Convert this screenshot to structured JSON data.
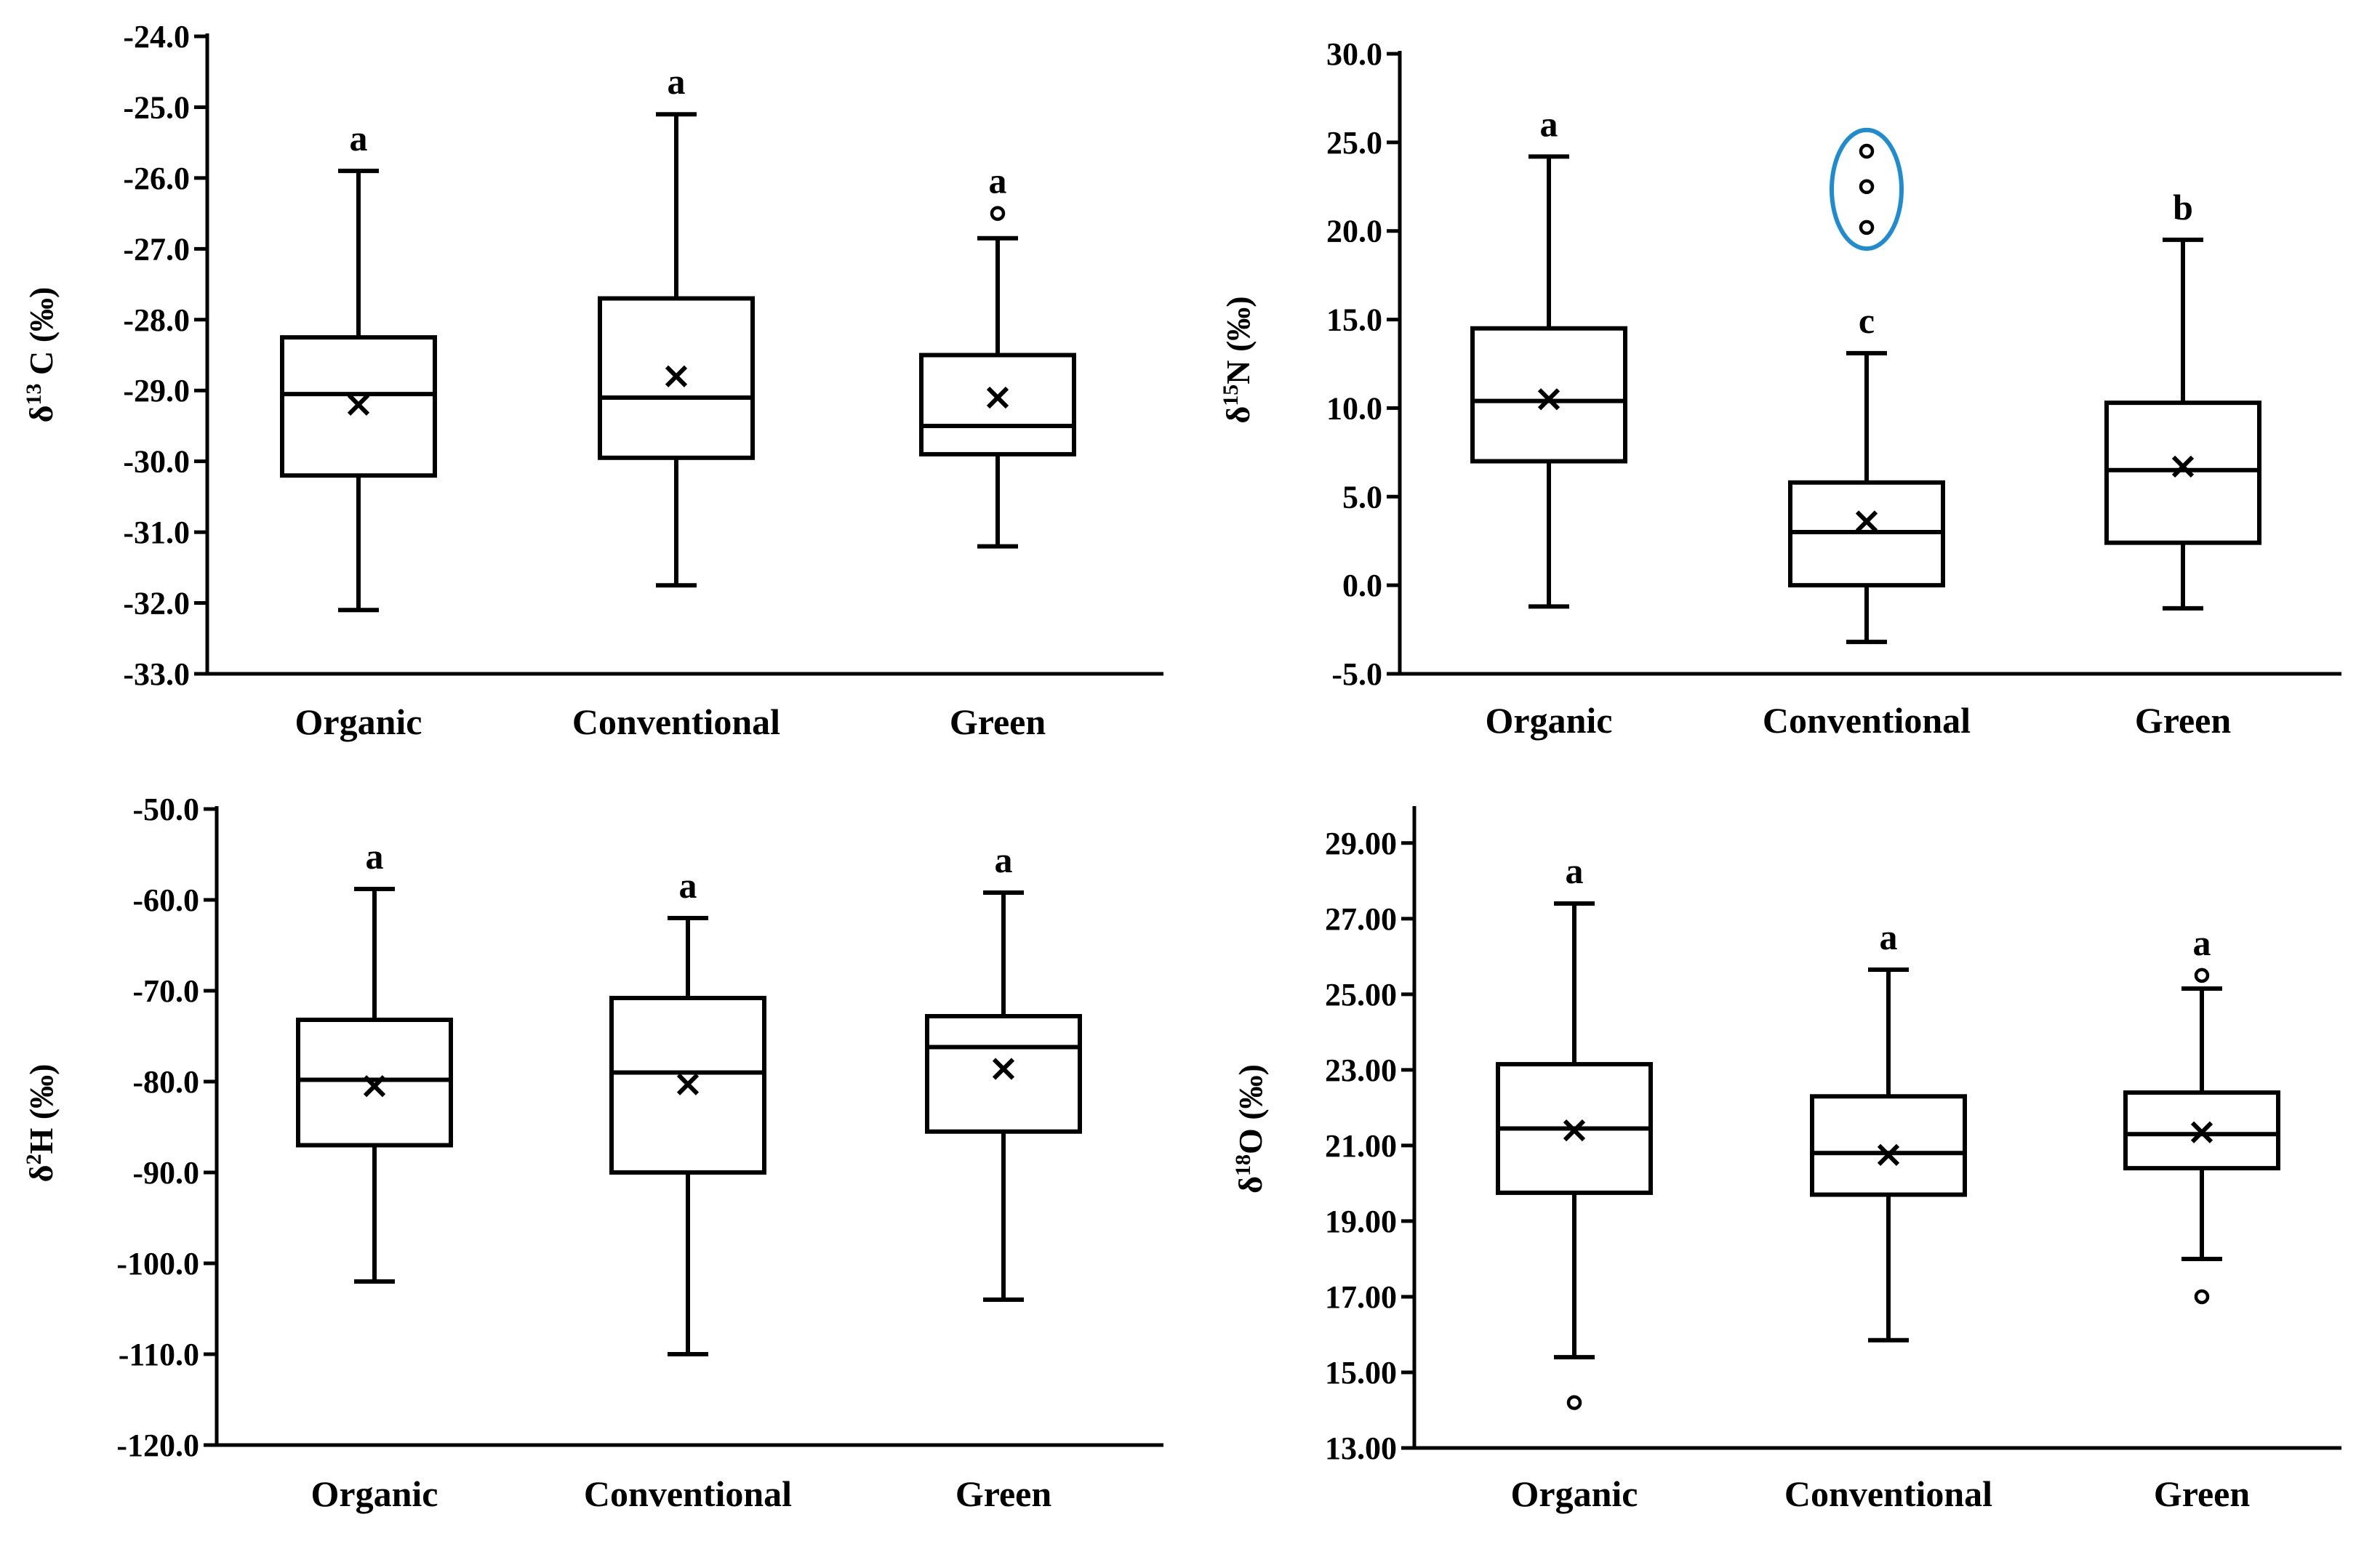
{
  "chart_data": [
    {
      "type": "box",
      "id": "d13c",
      "ylabel": {
        "prefix": "δ",
        "sup": "13",
        "suffix": " C (‰)"
      },
      "ylim": [
        -33.0,
        -24.0
      ],
      "yticks": [
        -24.0,
        -25.0,
        -26.0,
        -27.0,
        -28.0,
        -29.0,
        -30.0,
        -31.0,
        -32.0,
        -33.0
      ],
      "ytick_labels": [
        "-24.0",
        "-25.0",
        "-26.0",
        "-27.0",
        "-28.0",
        "-29.0",
        "-30.0",
        "-31.0",
        "-32.0",
        "-33.0"
      ],
      "categories": [
        "Organic",
        "Conventional",
        "Green"
      ],
      "boxes": [
        {
          "whisker_low": -32.1,
          "q1": -30.2,
          "median": -29.05,
          "q3": -28.25,
          "whisker_high": -25.9,
          "mean": -29.2,
          "outliers": [],
          "letter": "a"
        },
        {
          "whisker_low": -31.75,
          "q1": -29.95,
          "median": -29.1,
          "q3": -27.7,
          "whisker_high": -25.1,
          "mean": -28.8,
          "outliers": [],
          "letter": "a"
        },
        {
          "whisker_low": -31.2,
          "q1": -29.9,
          "median": -29.5,
          "q3": -28.5,
          "whisker_high": -26.85,
          "mean": -29.1,
          "outliers": [
            -26.5
          ],
          "letter": "a"
        }
      ],
      "highlight": null
    },
    {
      "type": "box",
      "id": "d15n",
      "ylabel": {
        "prefix": "δ",
        "sup": "15",
        "suffix": "N (‰)"
      },
      "ylim": [
        -5.0,
        30.0
      ],
      "yticks": [
        30.0,
        25.0,
        20.0,
        15.0,
        10.0,
        5.0,
        0.0,
        -5.0
      ],
      "ytick_labels": [
        "30.0",
        "25.0",
        "20.0",
        "15.0",
        "10.0",
        "5.0",
        "0.0",
        "-5.0"
      ],
      "categories": [
        "Organic",
        "Conventional",
        "Green"
      ],
      "boxes": [
        {
          "whisker_low": -1.2,
          "q1": 7.0,
          "median": 10.4,
          "q3": 14.5,
          "whisker_high": 24.2,
          "mean": 10.5,
          "outliers": [],
          "letter": "a"
        },
        {
          "whisker_low": -3.2,
          "q1": 0.0,
          "median": 3.0,
          "q3": 5.8,
          "whisker_high": 13.1,
          "mean": 3.6,
          "outliers": [
            24.5,
            22.5,
            20.2
          ],
          "letter": "c"
        },
        {
          "whisker_low": -1.3,
          "q1": 2.4,
          "median": 6.5,
          "q3": 10.3,
          "whisker_high": 19.5,
          "mean": 6.7,
          "outliers": [],
          "letter": "b"
        }
      ],
      "highlight": {
        "category_index": 1,
        "ymin": 19.0,
        "ymax": 25.7,
        "color": "#1f8bd0"
      }
    },
    {
      "type": "box",
      "id": "d2h",
      "ylabel": {
        "prefix": "δ",
        "sup": "2",
        "suffix": "H (‰)"
      },
      "ylim": [
        -120.0,
        -50.0
      ],
      "yticks": [
        -50.0,
        -60.0,
        -70.0,
        -80.0,
        -90.0,
        -100.0,
        -110.0,
        -120.0
      ],
      "ytick_labels": [
        "-50.0",
        "-60.0",
        "-70.0",
        "-80.0",
        "-90.0",
        "-100.0",
        "-110.0",
        "-120.0"
      ],
      "categories": [
        "Organic",
        "Conventional",
        "Green"
      ],
      "boxes": [
        {
          "whisker_low": -102.0,
          "q1": -87.0,
          "median": -79.8,
          "q3": -73.2,
          "whisker_high": -58.8,
          "mean": -80.5,
          "outliers": [],
          "letter": "a"
        },
        {
          "whisker_low": -110.0,
          "q1": -90.0,
          "median": -79.0,
          "q3": -70.8,
          "whisker_high": -62.0,
          "mean": -80.3,
          "outliers": [],
          "letter": "a"
        },
        {
          "whisker_low": -104.0,
          "q1": -85.5,
          "median": -76.2,
          "q3": -72.8,
          "whisker_high": -59.2,
          "mean": -78.6,
          "outliers": [],
          "letter": "a"
        }
      ],
      "highlight": null
    },
    {
      "type": "box",
      "id": "d18o",
      "ylabel": {
        "prefix": "δ",
        "sup": "18",
        "suffix": "O (‰)"
      },
      "ylim": [
        13.0,
        29.9
      ],
      "yticks": [
        29.0,
        27.0,
        25.0,
        23.0,
        21.0,
        19.0,
        17.0,
        15.0,
        13.0
      ],
      "ytick_labels": [
        "29.00",
        "27.00",
        "25.00",
        "23.00",
        "21.00",
        "19.00",
        "17.00",
        "15.00",
        "13.00"
      ],
      "categories": [
        "Organic",
        "Conventional",
        "Green"
      ],
      "boxes": [
        {
          "whisker_low": 15.4,
          "q1": 19.75,
          "median": 21.45,
          "q3": 23.15,
          "whisker_high": 27.4,
          "mean": 21.4,
          "outliers": [
            14.2
          ],
          "letter": "a"
        },
        {
          "whisker_low": 15.85,
          "q1": 19.7,
          "median": 20.8,
          "q3": 22.3,
          "whisker_high": 25.65,
          "mean": 20.75,
          "outliers": [],
          "letter": "a"
        },
        {
          "whisker_low": 18.0,
          "q1": 20.4,
          "median": 21.3,
          "q3": 22.4,
          "whisker_high": 25.15,
          "mean": 21.35,
          "outliers": [
            25.5,
            17.0
          ],
          "letter": "a"
        }
      ],
      "highlight": null
    }
  ]
}
